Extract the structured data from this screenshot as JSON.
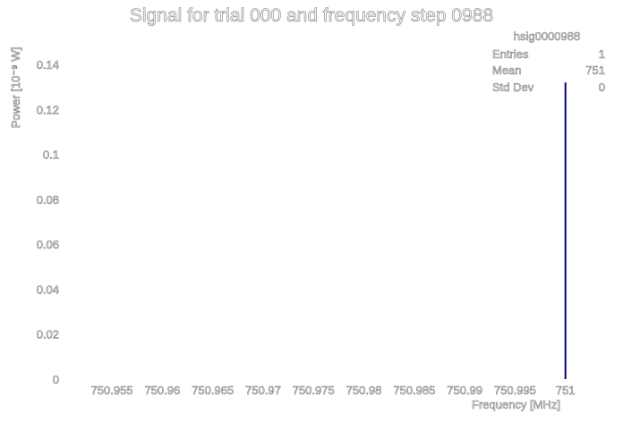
{
  "chart_data": {
    "type": "bar",
    "title": "Signal for trial 000 and frequency step 0988",
    "xlabel": "Frequency [MHz]",
    "ylabel": "Power [10⁻⁹ W]",
    "x_ticks": [
      "750.955",
      "750.96",
      "750.965",
      "750.97",
      "750.975",
      "750.98",
      "750.985",
      "750.99",
      "750.995",
      "751"
    ],
    "x_tick_values": [
      750.955,
      750.96,
      750.965,
      750.97,
      750.975,
      750.98,
      750.985,
      750.99,
      750.995,
      751.0
    ],
    "y_ticks": [
      "0",
      "0.02",
      "0.04",
      "0.06",
      "0.08",
      "0.1",
      "0.12",
      "0.14"
    ],
    "y_tick_values": [
      0,
      0.02,
      0.04,
      0.06,
      0.08,
      0.1,
      0.12,
      0.14
    ],
    "xlim": [
      750.951,
      751.005
    ],
    "ylim": [
      0,
      0.152
    ],
    "series": [
      {
        "x": [
          751.0
        ],
        "values": [
          0.132
        ],
        "color": "#00008b"
      }
    ],
    "grid": false,
    "stats_box": {
      "name": "hsig0000988",
      "rows": [
        {
          "label": "Entries",
          "value": "1"
        },
        {
          "label": "Mean",
          "value": "751"
        },
        {
          "label": "Std Dev",
          "value": "0"
        }
      ]
    }
  }
}
